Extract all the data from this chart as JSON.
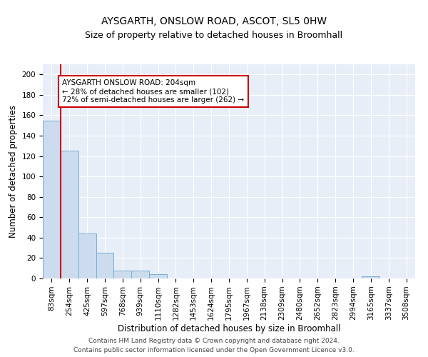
{
  "title1": "AYSGARTH, ONSLOW ROAD, ASCOT, SL5 0HW",
  "title2": "Size of property relative to detached houses in Broomhall",
  "xlabel": "Distribution of detached houses by size in Broomhall",
  "ylabel": "Number of detached properties",
  "bar_values": [
    155,
    125,
    44,
    25,
    8,
    8,
    4,
    0,
    0,
    0,
    0,
    0,
    0,
    0,
    0,
    0,
    0,
    0,
    2,
    0,
    0
  ],
  "categories": [
    "83sqm",
    "254sqm",
    "425sqm",
    "597sqm",
    "768sqm",
    "939sqm",
    "1110sqm",
    "1282sqm",
    "1453sqm",
    "1624sqm",
    "1795sqm",
    "1967sqm",
    "2138sqm",
    "2309sqm",
    "2480sqm",
    "2652sqm",
    "2823sqm",
    "2994sqm",
    "3165sqm",
    "3337sqm",
    "3508sqm"
  ],
  "bar_color": "#ccdcee",
  "bar_edge_color": "#7aadd4",
  "vline_color": "#cc0000",
  "annotation_text": "AYSGARTH ONSLOW ROAD: 204sqm\n← 28% of detached houses are smaller (102)\n72% of semi-detached houses are larger (262) →",
  "annotation_box_color": "#ffffff",
  "annotation_box_edge_color": "#cc0000",
  "ylim": [
    0,
    210
  ],
  "yticks": [
    0,
    20,
    40,
    60,
    80,
    100,
    120,
    140,
    160,
    180,
    200
  ],
  "background_color": "#e8eef8",
  "footer_text": "Contains HM Land Registry data © Crown copyright and database right 2024.\nContains public sector information licensed under the Open Government Licence v3.0.",
  "title1_fontsize": 10,
  "title2_fontsize": 9,
  "xlabel_fontsize": 8.5,
  "ylabel_fontsize": 8.5,
  "annotation_fontsize": 7.5,
  "footer_fontsize": 6.5,
  "tick_fontsize": 7.5
}
